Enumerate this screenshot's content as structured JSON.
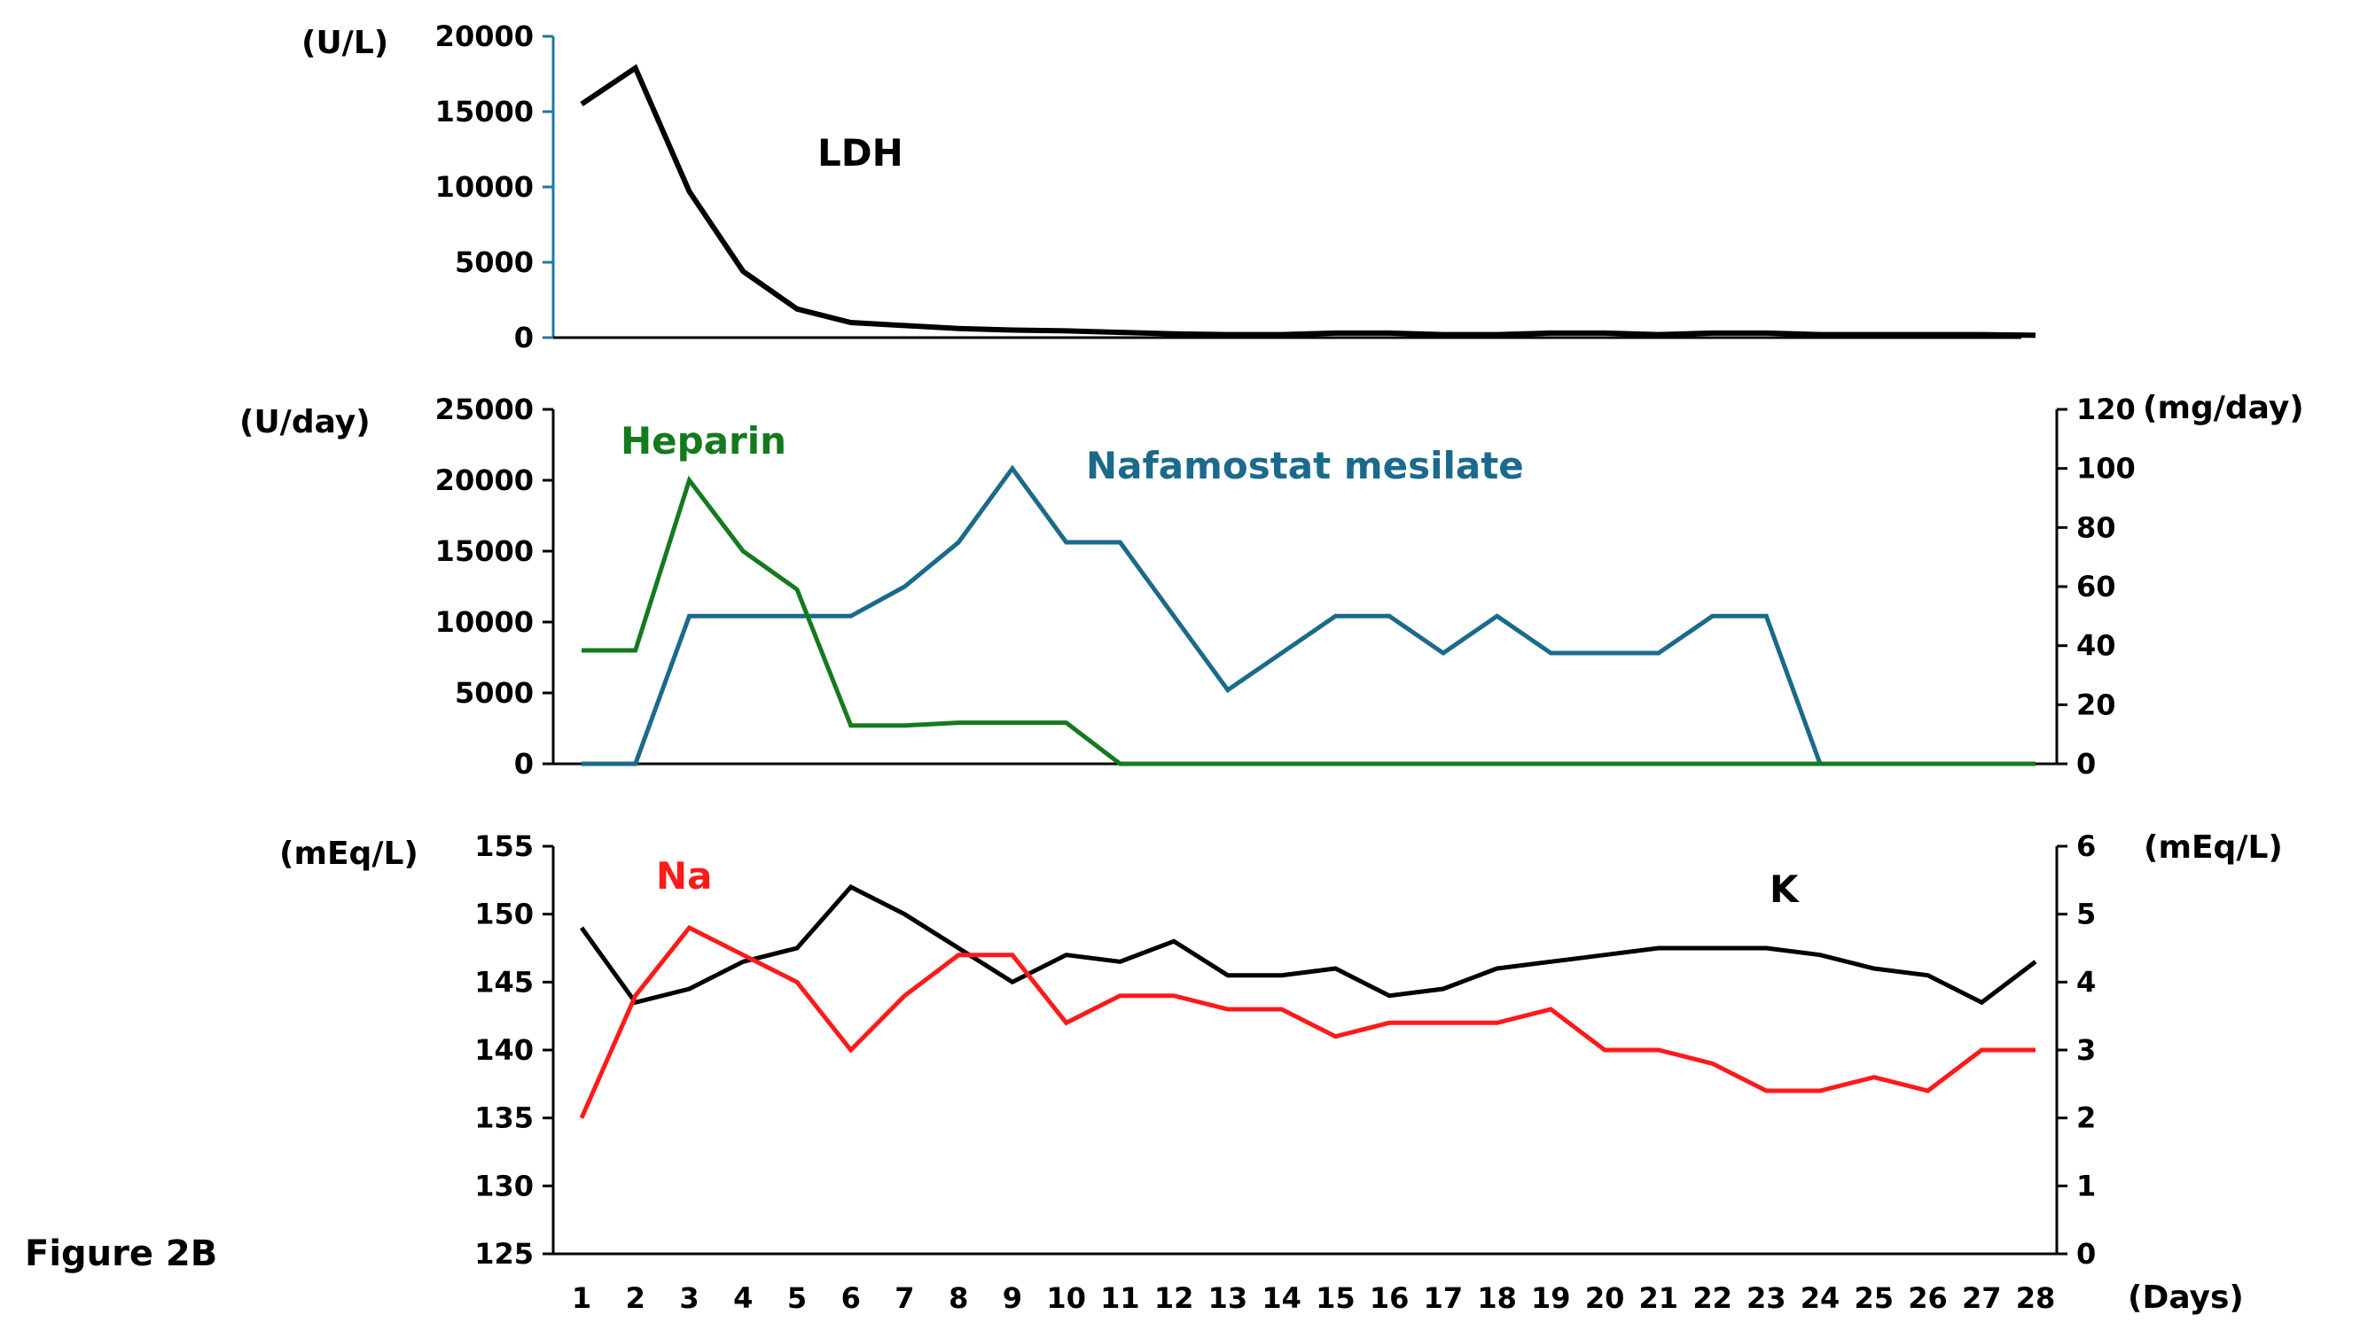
{
  "figure_label": "Figure 2B",
  "colors": {
    "black": "#000000",
    "green": "#157a1e",
    "blue": "#1b6a8c",
    "red": "#ff1a1a",
    "axis_accent": "#1f78a0"
  },
  "chart_data": [
    {
      "id": "ldh",
      "type": "line",
      "title": "",
      "x": [
        1,
        2,
        3,
        4,
        5,
        6,
        7,
        8,
        9,
        10,
        11,
        12,
        13,
        14,
        15,
        16,
        17,
        18,
        19,
        20,
        21,
        22,
        23,
        24,
        25,
        26,
        27,
        28
      ],
      "y_axis": {
        "unit": "(U/L)",
        "ylim": [
          0,
          20000
        ],
        "ticks": [
          "0",
          "5000",
          "10000",
          "15000",
          "20000"
        ]
      },
      "series": [
        {
          "name": "LDH",
          "color": "#000000",
          "axis": "left",
          "values": [
            15500,
            17900,
            9700,
            4400,
            1900,
            1000,
            800,
            600,
            500,
            450,
            350,
            250,
            200,
            200,
            300,
            300,
            200,
            200,
            300,
            300,
            200,
            300,
            300,
            200,
            200,
            200,
            200,
            150
          ]
        }
      ]
    },
    {
      "id": "anticoagulants",
      "type": "line",
      "title": "",
      "x": [
        1,
        2,
        3,
        4,
        5,
        6,
        7,
        8,
        9,
        10,
        11,
        12,
        13,
        14,
        15,
        16,
        17,
        18,
        19,
        20,
        21,
        22,
        23,
        24,
        25,
        26,
        27,
        28
      ],
      "y_axis_left": {
        "unit": "(U/day)",
        "ylim": [
          0,
          25000
        ],
        "ticks": [
          "0",
          "5000",
          "10000",
          "15000",
          "20000",
          "25000"
        ]
      },
      "y_axis_right": {
        "unit": "(mg/day)",
        "ylim": [
          0,
          120
        ],
        "ticks": [
          "0",
          "20",
          "40",
          "60",
          "80",
          "100",
          "120"
        ]
      },
      "series": [
        {
          "name": "Heparin",
          "color": "#157a1e",
          "axis": "left",
          "values": [
            8000,
            8000,
            20000,
            15000,
            12300,
            2700,
            2700,
            2900,
            2900,
            2900,
            0,
            0,
            0,
            0,
            0,
            0,
            0,
            0,
            0,
            0,
            0,
            0,
            0,
            0,
            0,
            0,
            0,
            0
          ]
        },
        {
          "name": "Nafamostat mesilate",
          "color": "#1b6a8c",
          "axis": "right",
          "values": [
            0,
            0,
            50,
            50,
            50,
            50,
            60,
            75,
            100,
            75,
            75,
            50,
            25,
            37.5,
            50,
            50,
            37.5,
            50,
            37.5,
            37.5,
            37.5,
            50,
            50,
            0,
            0,
            0,
            0,
            0
          ]
        }
      ]
    },
    {
      "id": "electrolytes",
      "type": "line",
      "title": "",
      "x": [
        1,
        2,
        3,
        4,
        5,
        6,
        7,
        8,
        9,
        10,
        11,
        12,
        13,
        14,
        15,
        16,
        17,
        18,
        19,
        20,
        21,
        22,
        23,
        24,
        25,
        26,
        27,
        28
      ],
      "xlabel": "(Days)",
      "x_ticks": [
        "1",
        "2",
        "3",
        "4",
        "5",
        "6",
        "7",
        "8",
        "9",
        "10",
        "11",
        "12",
        "13",
        "14",
        "15",
        "16",
        "17",
        "18",
        "19",
        "20",
        "21",
        "22",
        "23",
        "24",
        "25",
        "26",
        "27",
        "28"
      ],
      "y_axis_left": {
        "unit": "(mEq/L)",
        "ylim": [
          125,
          155
        ],
        "ticks": [
          "125",
          "130",
          "135",
          "140",
          "145",
          "150",
          "155"
        ]
      },
      "y_axis_right": {
        "unit": "(mEq/L)",
        "ylim": [
          0,
          6
        ],
        "ticks": [
          "0",
          "1",
          "2",
          "3",
          "4",
          "5",
          "6"
        ]
      },
      "series": [
        {
          "name": "Na",
          "color": "#ff1a1a",
          "axis": "left",
          "values": [
            135,
            144,
            149,
            147,
            145,
            140,
            144,
            147,
            147,
            142,
            144,
            144,
            143,
            143,
            141,
            142,
            142,
            142,
            143,
            140,
            140,
            139,
            137,
            137,
            138,
            137,
            140,
            140
          ]
        },
        {
          "name": "K",
          "color": "#000000",
          "axis": "right",
          "values": [
            4.8,
            3.7,
            3.9,
            4.3,
            4.5,
            5.4,
            5.0,
            4.5,
            4.0,
            4.4,
            4.3,
            4.6,
            4.1,
            4.1,
            4.2,
            3.8,
            3.9,
            4.2,
            4.3,
            4.4,
            4.5,
            4.5,
            4.5,
            4.4,
            4.2,
            4.1,
            3.7,
            4.3
          ]
        }
      ]
    }
  ]
}
